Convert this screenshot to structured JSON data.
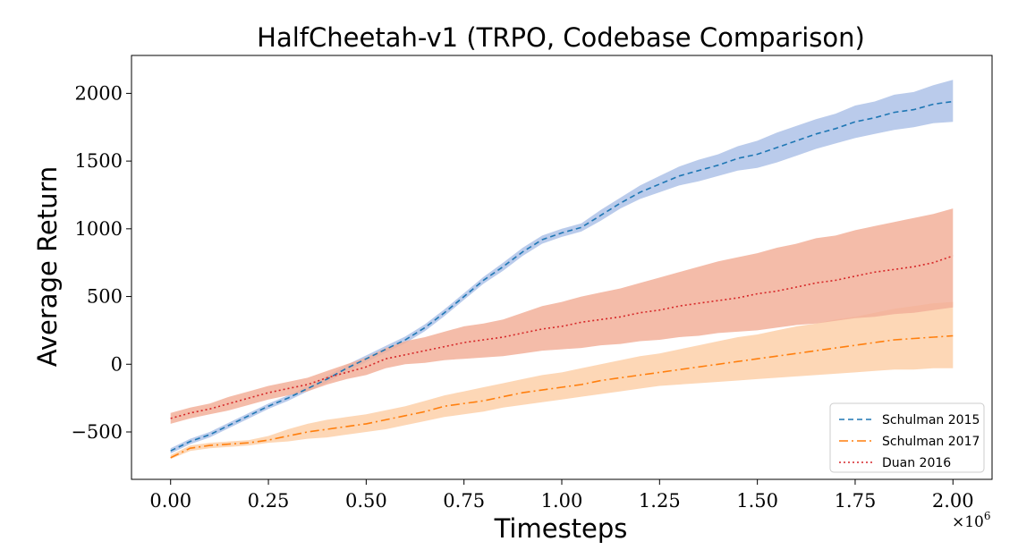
{
  "chart_data": {
    "type": "line",
    "title": "HalfCheetah-v1 (TRPO, Codebase Comparison)",
    "xlabel": "Timesteps",
    "ylabel": "Average Return",
    "x_multiplier_label": "×10",
    "x_multiplier_exp": "6",
    "xlim": [
      -0.1,
      2.1
    ],
    "ylim": [
      -850,
      2280
    ],
    "xticks": [
      0.0,
      0.25,
      0.5,
      0.75,
      1.0,
      1.25,
      1.5,
      1.75,
      2.0
    ],
    "xtick_labels": [
      "0.00",
      "0.25",
      "0.50",
      "0.75",
      "1.00",
      "1.25",
      "1.50",
      "1.75",
      "2.00"
    ],
    "yticks": [
      -500,
      0,
      500,
      1000,
      1500,
      2000
    ],
    "ytick_labels": [
      "−500",
      "0",
      "500",
      "1000",
      "1500",
      "2000"
    ],
    "grid": false,
    "legend_position": "bottom-right",
    "x": [
      0.0,
      0.05,
      0.1,
      0.15,
      0.2,
      0.25,
      0.3,
      0.35,
      0.4,
      0.45,
      0.5,
      0.55,
      0.6,
      0.65,
      0.7,
      0.75,
      0.8,
      0.85,
      0.9,
      0.95,
      1.0,
      1.05,
      1.1,
      1.15,
      1.2,
      1.25,
      1.3,
      1.35,
      1.4,
      1.45,
      1.5,
      1.55,
      1.6,
      1.65,
      1.7,
      1.75,
      1.8,
      1.85,
      1.9,
      1.95,
      2.0
    ],
    "series": [
      {
        "name": "Schulman 2015",
        "color": "#1f77b4",
        "fill": "#aec2e8",
        "dash": "6,4",
        "mean": [
          -640,
          -570,
          -520,
          -450,
          -380,
          -310,
          -250,
          -180,
          -110,
          -30,
          40,
          110,
          180,
          270,
          380,
          500,
          620,
          720,
          830,
          920,
          970,
          1010,
          1100,
          1190,
          1270,
          1330,
          1390,
          1430,
          1470,
          1520,
          1550,
          1600,
          1650,
          1700,
          1740,
          1790,
          1820,
          1860,
          1880,
          1920,
          1940
        ],
        "lower": [
          -660,
          -590,
          -540,
          -470,
          -400,
          -330,
          -270,
          -200,
          -135,
          -55,
          15,
          85,
          155,
          245,
          355,
          475,
          595,
          690,
          800,
          890,
          940,
          980,
          1060,
          1150,
          1220,
          1270,
          1320,
          1350,
          1390,
          1430,
          1450,
          1490,
          1540,
          1590,
          1630,
          1670,
          1700,
          1730,
          1750,
          1780,
          1790
        ],
        "upper": [
          -620,
          -550,
          -500,
          -430,
          -360,
          -290,
          -230,
          -160,
          -85,
          -5,
          65,
          135,
          205,
          295,
          405,
          525,
          645,
          750,
          860,
          950,
          1000,
          1040,
          1140,
          1230,
          1320,
          1390,
          1460,
          1510,
          1550,
          1610,
          1650,
          1710,
          1760,
          1810,
          1850,
          1910,
          1940,
          1990,
          2010,
          2060,
          2100
        ]
      },
      {
        "name": "Schulman 2017",
        "color": "#ff7f0e",
        "fill": "#fdd0a9",
        "dash": "10,4,2,4",
        "mean": [
          -690,
          -620,
          -600,
          -590,
          -580,
          -560,
          -530,
          -500,
          -480,
          -460,
          -440,
          -410,
          -380,
          -350,
          -310,
          -290,
          -270,
          -240,
          -210,
          -190,
          -170,
          -150,
          -120,
          -100,
          -80,
          -60,
          -40,
          -20,
          0,
          20,
          40,
          60,
          80,
          100,
          120,
          140,
          160,
          180,
          190,
          200,
          210
        ],
        "lower": [
          -700,
          -640,
          -620,
          -610,
          -600,
          -580,
          -570,
          -550,
          -540,
          -520,
          -500,
          -480,
          -450,
          -420,
          -390,
          -370,
          -350,
          -320,
          -300,
          -280,
          -260,
          -240,
          -220,
          -200,
          -180,
          -160,
          -150,
          -140,
          -130,
          -120,
          -110,
          -100,
          -90,
          -80,
          -70,
          -60,
          -50,
          -40,
          -40,
          -30,
          -30
        ],
        "upper": [
          -670,
          -600,
          -580,
          -570,
          -560,
          -530,
          -480,
          -440,
          -410,
          -390,
          -370,
          -340,
          -310,
          -270,
          -230,
          -200,
          -170,
          -140,
          -110,
          -80,
          -60,
          -30,
          0,
          30,
          60,
          80,
          110,
          140,
          170,
          200,
          220,
          250,
          280,
          300,
          330,
          350,
          380,
          410,
          430,
          450,
          460
        ]
      },
      {
        "name": "Duan 2016",
        "color": "#d62728",
        "fill": "#f2b09a",
        "dash": "2,3",
        "mean": [
          -400,
          -360,
          -330,
          -290,
          -250,
          -210,
          -180,
          -150,
          -100,
          -60,
          -20,
          40,
          70,
          100,
          130,
          160,
          180,
          200,
          230,
          260,
          280,
          310,
          330,
          350,
          380,
          400,
          430,
          450,
          470,
          490,
          520,
          540,
          570,
          600,
          620,
          650,
          680,
          700,
          720,
          750,
          800
        ],
        "lower": [
          -440,
          -400,
          -370,
          -340,
          -300,
          -260,
          -230,
          -200,
          -150,
          -110,
          -80,
          -30,
          0,
          10,
          30,
          40,
          50,
          60,
          80,
          100,
          110,
          120,
          140,
          150,
          170,
          180,
          200,
          210,
          230,
          240,
          250,
          270,
          290,
          300,
          320,
          340,
          350,
          370,
          380,
          400,
          420
        ],
        "upper": [
          -360,
          -320,
          -290,
          -240,
          -200,
          -160,
          -130,
          -100,
          -50,
          0,
          50,
          120,
          170,
          200,
          240,
          280,
          300,
          330,
          380,
          430,
          460,
          500,
          530,
          560,
          600,
          640,
          680,
          720,
          760,
          790,
          820,
          860,
          890,
          930,
          950,
          990,
          1020,
          1050,
          1080,
          1110,
          1150
        ]
      }
    ]
  }
}
